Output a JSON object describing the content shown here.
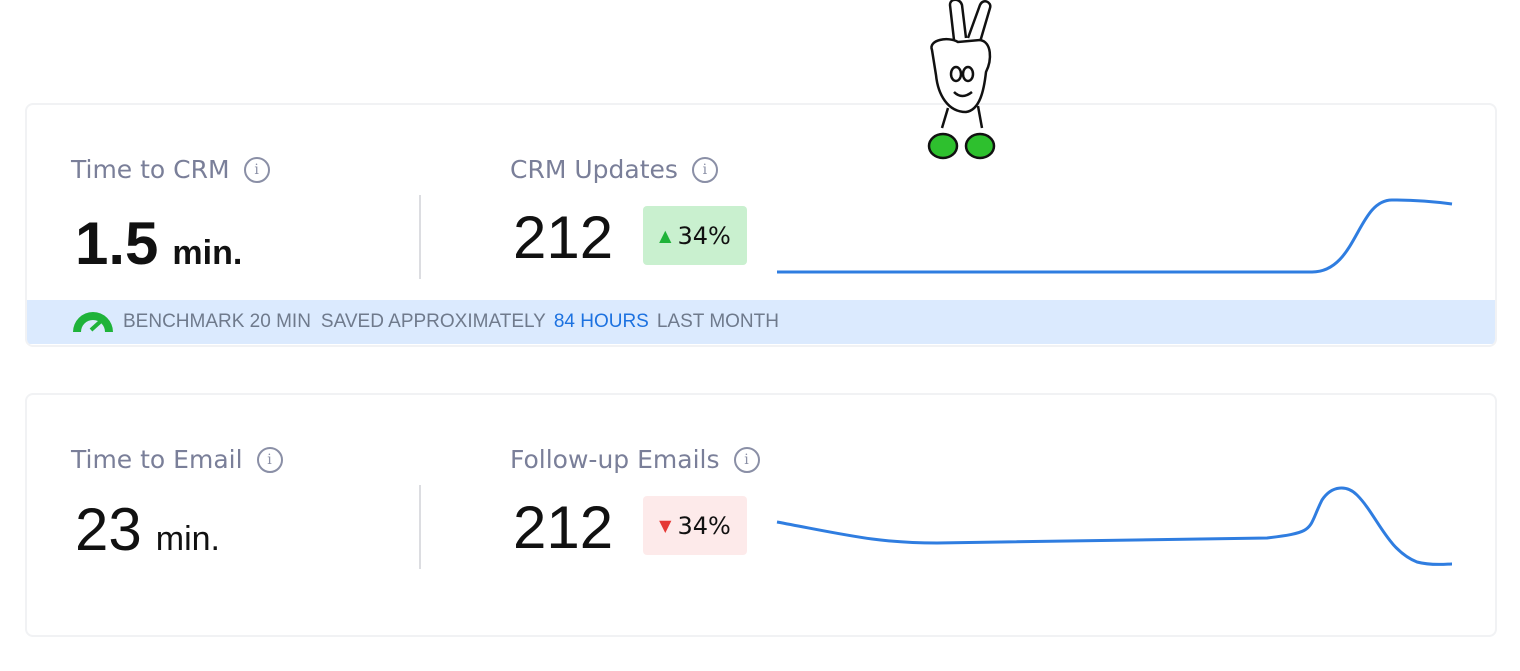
{
  "cards": [
    {
      "metric_label": "Time to CRM",
      "metric_value": "1.5",
      "metric_unit": "min.",
      "count_label": "CRM Updates",
      "count_value": "212",
      "change": "34%",
      "direction": "up",
      "banner": {
        "benchmark": "BENCHMARK 20 MIN",
        "saved_prefix": "SAVED APPROXIMATELY",
        "saved_amount": "84 HOURS",
        "saved_suffix": "LAST MONTH"
      }
    },
    {
      "metric_label": "Time to Email",
      "metric_value": "23",
      "metric_unit": "min.",
      "count_label": "Follow-up Emails",
      "count_value": "212",
      "change": "34%",
      "direction": "down"
    }
  ]
}
